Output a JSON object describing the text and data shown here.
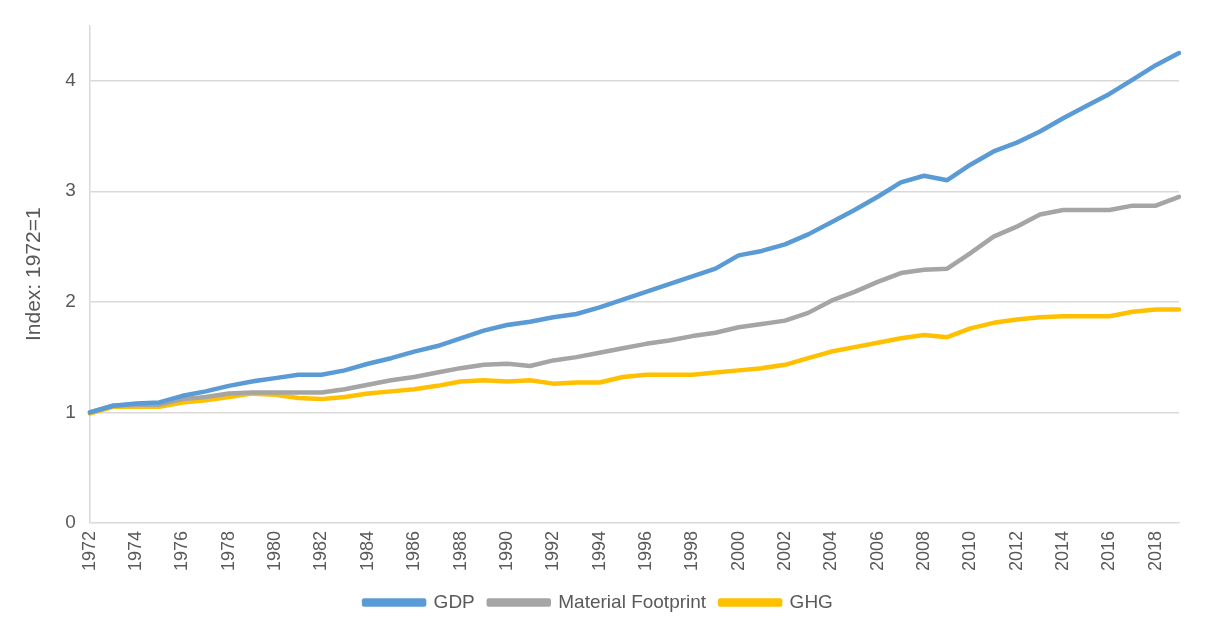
{
  "chart_data": {
    "type": "line",
    "ylabel": "Index: 1972=1",
    "categories": [
      "1972",
      null,
      "1974",
      null,
      "1976",
      null,
      "1978",
      null,
      "1980",
      null,
      "1982",
      null,
      "1984",
      null,
      "1986",
      null,
      "1988",
      null,
      "1990",
      null,
      "1992",
      null,
      "1994",
      null,
      "1996",
      null,
      "1998",
      null,
      "2000",
      null,
      "2002",
      null,
      "2004",
      null,
      "2006",
      null,
      "2008",
      null,
      "2010",
      null,
      "2012",
      null,
      "2014",
      null,
      "2016",
      null,
      "2018",
      null
    ],
    "series": [
      {
        "name": "GDP",
        "color": "#5b9bd5",
        "values": [
          1.0,
          1.06,
          1.08,
          1.09,
          1.15,
          1.19,
          1.24,
          1.28,
          1.31,
          1.34,
          1.34,
          1.38,
          1.44,
          1.49,
          1.55,
          1.6,
          1.67,
          1.74,
          1.79,
          1.82,
          1.86,
          1.89,
          1.95,
          2.02,
          2.09,
          2.16,
          2.23,
          2.3,
          2.42,
          2.46,
          2.52,
          2.61,
          2.72,
          2.83,
          2.95,
          3.08,
          3.14,
          3.1,
          3.24,
          3.36,
          3.44,
          3.54,
          3.66,
          3.77,
          3.88,
          4.01,
          4.14,
          4.25
        ]
      },
      {
        "name": "Material Footprint",
        "color": "#a5a5a5",
        "values": [
          1.0,
          1.06,
          1.07,
          1.07,
          1.12,
          1.14,
          1.17,
          1.18,
          1.18,
          1.18,
          1.18,
          1.21,
          1.25,
          1.29,
          1.32,
          1.36,
          1.4,
          1.43,
          1.44,
          1.42,
          1.47,
          1.5,
          1.54,
          1.58,
          1.62,
          1.65,
          1.69,
          1.72,
          1.77,
          1.8,
          1.83,
          1.9,
          2.01,
          2.09,
          2.18,
          2.26,
          2.29,
          2.3,
          2.44,
          2.59,
          2.68,
          2.79,
          2.83,
          2.83,
          2.83,
          2.87,
          2.87,
          2.95
        ]
      },
      {
        "name": "GHG",
        "color": "#ffc000",
        "values": [
          0.99,
          1.05,
          1.05,
          1.05,
          1.09,
          1.11,
          1.14,
          1.17,
          1.16,
          1.13,
          1.12,
          1.14,
          1.17,
          1.19,
          1.21,
          1.24,
          1.28,
          1.29,
          1.28,
          1.29,
          1.26,
          1.27,
          1.27,
          1.32,
          1.34,
          1.34,
          1.34,
          1.36,
          1.38,
          1.4,
          1.43,
          1.49,
          1.55,
          1.59,
          1.63,
          1.67,
          1.7,
          1.68,
          1.76,
          1.81,
          1.84,
          1.86,
          1.87,
          1.87,
          1.87,
          1.91,
          1.93,
          1.93
        ]
      }
    ],
    "ylim": [
      0,
      4.5
    ],
    "yticks": [
      0,
      1,
      2,
      3,
      4
    ],
    "grid": "y",
    "legend": "bottom",
    "marker": "none",
    "line_style": "solid"
  }
}
